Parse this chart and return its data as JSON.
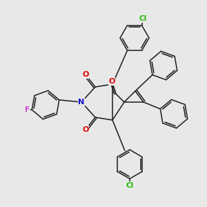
{
  "bg": "#e8e8e8",
  "bc": "#222222",
  "colors": {
    "O": "#dd0000",
    "N": "#1111cc",
    "Cl": "#22bb00",
    "F": "#cc44cc"
  },
  "figsize": [
    3.0,
    3.0
  ],
  "dpi": 100
}
